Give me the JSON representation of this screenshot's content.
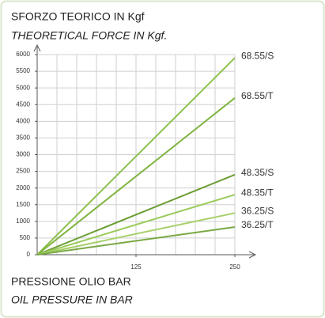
{
  "chart_data": {
    "type": "line",
    "title": "SFORZO TEORICO IN Kgf",
    "subtitle": "THEORETICAL FORCE  IN Kgf.",
    "x_label": "PRESSIONE OLIO BAR",
    "x_label_2": "OIL PRESSURE IN BAR",
    "x": [
      0,
      250
    ],
    "xlim": [
      0,
      250
    ],
    "xticks": [
      125,
      250
    ],
    "x_grid": [
      0,
      25,
      50,
      75,
      100,
      125,
      150,
      175,
      200,
      225,
      250
    ],
    "ylim": [
      0,
      6000
    ],
    "yticks": [
      0,
      500,
      1000,
      1500,
      2000,
      2500,
      3000,
      3500,
      4000,
      4500,
      5000,
      5500,
      6000
    ],
    "grid": true,
    "series": [
      {
        "name": "68.55/S",
        "color": "#8fbf4f",
        "values": [
          0,
          5900
        ]
      },
      {
        "name": "68.55/T",
        "color": "#7fb33f",
        "values": [
          0,
          4700
        ]
      },
      {
        "name": "48.35/S",
        "color": "#6a9e34",
        "values": [
          0,
          2400
        ]
      },
      {
        "name": "48.35/T",
        "color": "#9ccb5c",
        "values": [
          0,
          1800
        ]
      },
      {
        "name": "36.25/S",
        "color": "#a6d06a",
        "values": [
          0,
          1250
        ]
      },
      {
        "name": "36.25/T",
        "color": "#7aa844",
        "values": [
          0,
          830
        ]
      }
    ]
  }
}
